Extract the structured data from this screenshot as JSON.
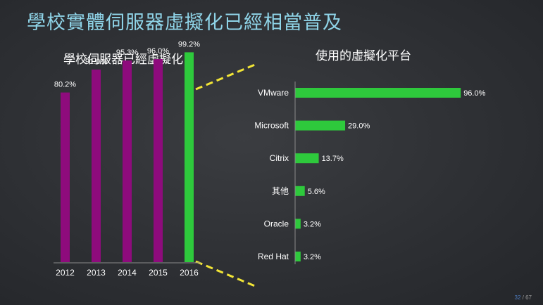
{
  "slide": {
    "title": "學校實體伺服器虛擬化已經相當普及",
    "page_current": "32",
    "page_sep": " / ",
    "page_total": "67"
  },
  "chart_data": [
    {
      "type": "bar",
      "title": "學校伺服器已經虛擬化",
      "categories": [
        "2012",
        "2013",
        "2014",
        "2015",
        "2016"
      ],
      "values": [
        80.2,
        91.0,
        95.3,
        96.0,
        99.2
      ],
      "value_labels": [
        "80.2%",
        "91.0%",
        "95.3%",
        "96.0%",
        "99.2%"
      ],
      "unit": "%",
      "ylim": [
        0,
        100
      ],
      "colors": [
        "#8e0b7c",
        "#8e0b7c",
        "#8e0b7c",
        "#8e0b7c",
        "#2ec93c"
      ],
      "grid": false,
      "legend": "none"
    },
    {
      "type": "bar",
      "orientation": "horizontal",
      "title": "使用的虛擬化平台",
      "categories": [
        "VMware",
        "Microsoft",
        "Citrix",
        "其他",
        "Oracle",
        "Red Hat"
      ],
      "values": [
        96.0,
        29.0,
        13.7,
        5.6,
        3.2,
        3.2
      ],
      "value_labels": [
        "96.0%",
        "29.0%",
        "13.7%",
        "5.6%",
        "3.2%",
        "3.2%"
      ],
      "unit": "%",
      "xlim": [
        0,
        100
      ],
      "color": "#2ec93c",
      "grid": false,
      "legend": "none"
    }
  ],
  "styles": {
    "connector_color": "#f2e536",
    "label_color": "#ffffff"
  }
}
